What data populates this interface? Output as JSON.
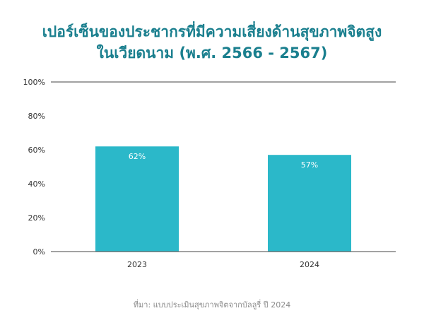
{
  "title_lines": [
    "เปอร์เซ็นของประชากรที่มีความเสี่ยงด้านสุขภาพจิตสูง",
    "ในเวียดนาม (พ.ศ. 2566 - 2567)"
  ],
  "source": "ที่มา: แบบประเมินสุขภาพจิตจากบัลลูรี่ ปี 2024",
  "colors": {
    "bar": "#2bb8c9",
    "title": "#1a7f8e",
    "axis_text": "#333333",
    "bar_label": "#ffffff"
  },
  "chart_data": {
    "type": "bar",
    "categories": [
      "2023",
      "2024"
    ],
    "values": [
      62,
      57
    ],
    "value_labels": [
      "62%",
      "57%"
    ],
    "ylim": [
      0,
      100
    ],
    "yticks": [
      0,
      20,
      40,
      60,
      80,
      100
    ],
    "ytick_labels": [
      "0%",
      "20%",
      "40%",
      "60%",
      "80%",
      "100%"
    ],
    "grid": "top-line-only",
    "legend": "none"
  }
}
